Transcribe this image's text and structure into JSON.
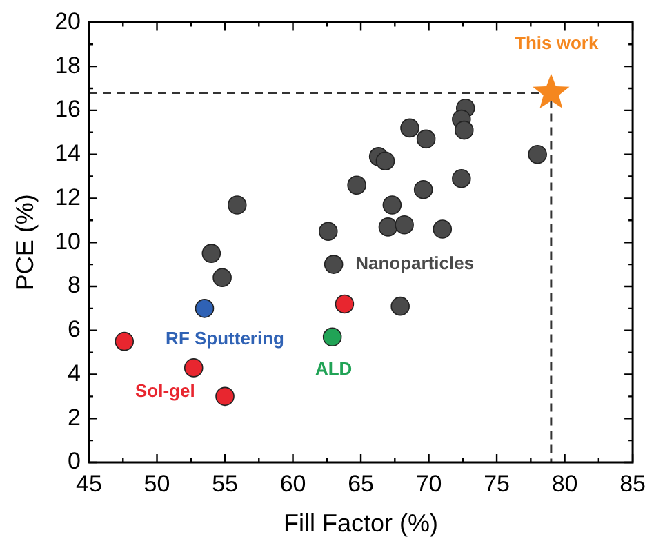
{
  "chart_data": {
    "type": "scatter",
    "xlabel": "Fill Factor (%)",
    "ylabel": "PCE (%)",
    "xlim": [
      45,
      85
    ],
    "xticks": [
      45,
      50,
      55,
      60,
      65,
      70,
      75,
      80,
      85
    ],
    "ylim": [
      0,
      20
    ],
    "yticks": [
      0,
      2,
      4,
      6,
      8,
      10,
      12,
      14,
      16,
      18,
      20
    ],
    "grid": false,
    "legend": false,
    "marker": "circle",
    "series": [
      {
        "name": "Nanoparticles",
        "color": "#4a4a4a",
        "x": [
          55.9,
          54.0,
          54.8,
          62.6,
          63.0,
          64.7,
          66.3,
          66.8,
          68.6,
          69.8,
          67.3,
          69.6,
          67.0,
          68.2,
          71.0,
          72.4,
          72.7,
          72.4,
          72.6,
          78.0,
          67.9
        ],
        "values": [
          11.7,
          9.5,
          8.4,
          10.5,
          9.0,
          12.6,
          13.9,
          13.7,
          15.2,
          14.7,
          11.7,
          12.4,
          10.7,
          10.8,
          10.6,
          12.9,
          16.1,
          15.6,
          15.1,
          14.0,
          7.1
        ]
      },
      {
        "name": "Sol-gel",
        "color": "#e8262f",
        "x": [
          47.6,
          52.7,
          55.0,
          63.8
        ],
        "values": [
          5.5,
          4.3,
          3.0,
          7.2
        ]
      },
      {
        "name": "RF Sputtering",
        "color": "#2f62b5",
        "x": [
          53.5
        ],
        "values": [
          7.0
        ]
      },
      {
        "name": "ALD",
        "color": "#21a356",
        "x": [
          62.9
        ],
        "values": [
          5.7
        ]
      },
      {
        "name": "This work",
        "color": "#f5871f",
        "x": [
          79.0
        ],
        "values": [
          16.8
        ],
        "marker": "star"
      },
      {
        "type": "line",
        "color": "#333333",
        "x": [
          45,
          79,
          79
        ],
        "values": [
          16.8,
          16.8,
          0
        ],
        "line_style": "dashed",
        "marker": "none"
      }
    ]
  }
}
